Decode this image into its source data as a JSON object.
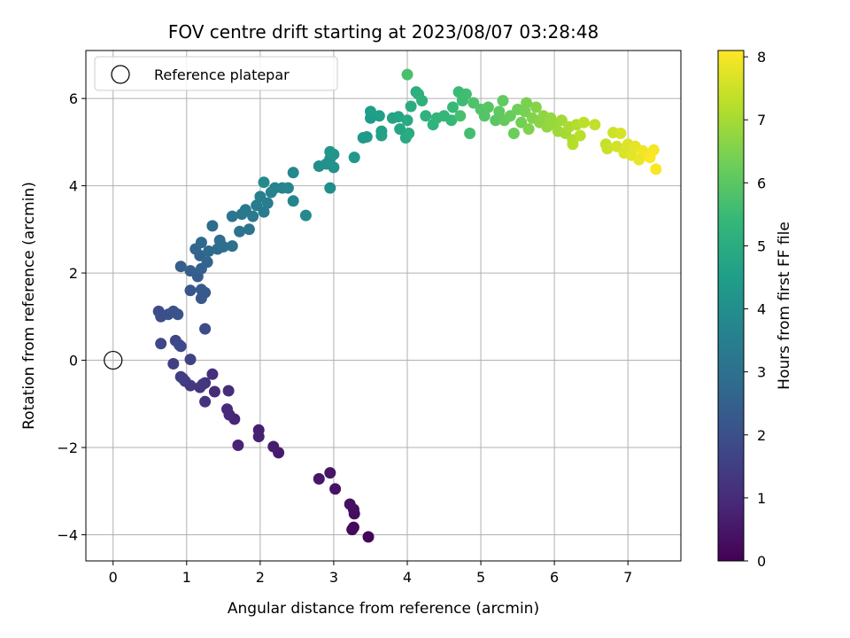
{
  "chart_data": {
    "type": "scatter",
    "title": "FOV centre drift starting at 2023/08/07 03:28:48",
    "xlabel": "Angular distance from reference (arcmin)",
    "ylabel": "Rotation from reference (arcmin)",
    "xlim": [
      -0.37,
      7.72
    ],
    "ylim": [
      -4.6,
      7.1
    ],
    "xticks": [
      0,
      1,
      2,
      3,
      4,
      5,
      6,
      7
    ],
    "yticks": [
      -4,
      -2,
      0,
      2,
      4,
      6
    ],
    "grid": true,
    "legend": {
      "placement": "top-left",
      "entries": [
        "Reference platepar"
      ]
    },
    "reference_point": {
      "x": 0,
      "y": 0,
      "label": "Reference platepar"
    },
    "colorbar": {
      "label": "Hours from first FF file",
      "range": [
        0,
        8.1
      ],
      "ticks": [
        0,
        1,
        2,
        3,
        4,
        5,
        6,
        7,
        8
      ],
      "colormap": "viridis",
      "colors": [
        "#440154",
        "#482878",
        "#3e4989",
        "#31688e",
        "#26828e",
        "#1f9e89",
        "#35b779",
        "#6ece58",
        "#b5de2b",
        "#fde725"
      ]
    },
    "points": [
      [
        3.47,
        -4.05,
        0.1
      ],
      [
        3.27,
        -3.83,
        0.15
      ],
      [
        3.25,
        -3.88,
        0.2
      ],
      [
        3.28,
        -3.52,
        0.25
      ],
      [
        3.27,
        -3.42,
        0.3
      ],
      [
        3.22,
        -3.3,
        0.35
      ],
      [
        3.02,
        -2.95,
        0.4
      ],
      [
        2.95,
        -2.58,
        0.45
      ],
      [
        2.8,
        -2.72,
        0.5
      ],
      [
        2.25,
        -2.12,
        0.6
      ],
      [
        2.18,
        -1.98,
        0.65
      ],
      [
        1.98,
        -1.6,
        0.7
      ],
      [
        1.98,
        -1.75,
        0.75
      ],
      [
        1.7,
        -1.95,
        0.8
      ],
      [
        1.65,
        -1.35,
        0.85
      ],
      [
        1.58,
        -1.25,
        0.9
      ],
      [
        1.55,
        -1.12,
        0.95
      ],
      [
        1.38,
        -0.72,
        1.0
      ],
      [
        1.57,
        -0.7,
        1.05
      ],
      [
        1.35,
        -0.32,
        1.1
      ],
      [
        1.25,
        -0.52,
        1.15
      ],
      [
        1.25,
        -0.95,
        1.2
      ],
      [
        1.18,
        -0.62,
        1.25
      ],
      [
        1.22,
        -0.55,
        1.3
      ],
      [
        1.05,
        -0.58,
        1.35
      ],
      [
        0.98,
        -0.48,
        1.4
      ],
      [
        0.92,
        -0.38,
        1.45
      ],
      [
        0.95,
        -0.42,
        1.5
      ],
      [
        0.82,
        -0.08,
        1.55
      ],
      [
        1.05,
        0.02,
        1.6
      ],
      [
        0.92,
        0.32,
        1.65
      ],
      [
        0.85,
        0.45,
        1.7
      ],
      [
        0.65,
        0.38,
        1.75
      ],
      [
        0.9,
        0.35,
        1.8
      ],
      [
        1.25,
        0.72,
        1.85
      ],
      [
        0.62,
        1.12,
        1.9
      ],
      [
        0.65,
        1.0,
        1.95
      ],
      [
        0.75,
        1.05,
        2.0
      ],
      [
        0.82,
        1.12,
        2.05
      ],
      [
        0.88,
        1.05,
        2.1
      ],
      [
        1.05,
        1.6,
        2.15
      ],
      [
        1.2,
        1.42,
        2.2
      ],
      [
        1.25,
        1.55,
        2.25
      ],
      [
        1.2,
        1.62,
        2.3
      ],
      [
        1.15,
        1.92,
        2.35
      ],
      [
        0.92,
        2.15,
        2.4
      ],
      [
        1.05,
        2.05,
        2.45
      ],
      [
        1.2,
        2.1,
        2.5
      ],
      [
        1.18,
        2.4,
        2.55
      ],
      [
        1.28,
        2.25,
        2.6
      ],
      [
        1.12,
        2.55,
        2.65
      ],
      [
        1.2,
        2.7,
        2.7
      ],
      [
        1.3,
        2.5,
        2.75
      ],
      [
        1.42,
        2.55,
        2.8
      ],
      [
        1.35,
        3.08,
        2.85
      ],
      [
        1.45,
        2.75,
        2.9
      ],
      [
        1.5,
        2.6,
        2.95
      ],
      [
        1.62,
        2.62,
        3.0
      ],
      [
        1.72,
        2.95,
        3.05
      ],
      [
        1.85,
        3.0,
        3.1
      ],
      [
        1.62,
        3.3,
        3.15
      ],
      [
        1.75,
        3.35,
        3.2
      ],
      [
        1.8,
        3.45,
        3.25
      ],
      [
        1.9,
        3.3,
        3.3
      ],
      [
        1.95,
        3.55,
        3.35
      ],
      [
        2.05,
        3.4,
        3.4
      ],
      [
        2.1,
        3.6,
        3.45
      ],
      [
        2.0,
        3.75,
        3.5
      ],
      [
        2.15,
        3.85,
        3.55
      ],
      [
        2.2,
        3.95,
        3.6
      ],
      [
        2.3,
        3.95,
        3.65
      ],
      [
        2.45,
        3.65,
        3.7
      ],
      [
        2.38,
        3.95,
        3.75
      ],
      [
        2.45,
        4.3,
        3.8
      ],
      [
        2.62,
        3.32,
        3.85
      ],
      [
        2.05,
        4.08,
        3.9
      ],
      [
        2.95,
        3.95,
        3.95
      ],
      [
        2.8,
        4.45,
        4.0
      ],
      [
        2.9,
        4.5,
        4.05
      ],
      [
        3.0,
        4.42,
        4.1
      ],
      [
        2.95,
        4.62,
        4.15
      ],
      [
        3.0,
        4.72,
        4.2
      ],
      [
        2.95,
        4.78,
        4.25
      ],
      [
        3.28,
        4.65,
        4.3
      ],
      [
        3.4,
        5.1,
        4.35
      ],
      [
        3.45,
        5.12,
        4.4
      ],
      [
        3.5,
        5.55,
        4.45
      ],
      [
        3.5,
        5.7,
        4.5
      ],
      [
        3.62,
        5.6,
        4.55
      ],
      [
        3.65,
        5.25,
        4.6
      ],
      [
        3.65,
        5.15,
        4.65
      ],
      [
        3.8,
        5.55,
        4.7
      ],
      [
        3.88,
        5.58,
        4.75
      ],
      [
        3.9,
        5.3,
        4.8
      ],
      [
        4.0,
        5.5,
        4.85
      ],
      [
        3.98,
        5.1,
        4.9
      ],
      [
        4.02,
        5.2,
        4.95
      ],
      [
        4.05,
        5.82,
        5.0
      ],
      [
        4.12,
        6.15,
        5.05
      ],
      [
        4.15,
        6.1,
        5.1
      ],
      [
        4.2,
        5.95,
        5.15
      ],
      [
        4.25,
        5.6,
        5.2
      ],
      [
        4.35,
        5.4,
        5.25
      ],
      [
        4.4,
        5.55,
        5.3
      ],
      [
        4.5,
        5.6,
        5.35
      ],
      [
        4.6,
        5.5,
        5.4
      ],
      [
        4.62,
        5.8,
        5.45
      ],
      [
        4.7,
        6.15,
        5.5
      ],
      [
        4.75,
        5.95,
        5.55
      ],
      [
        4.8,
        6.1,
        5.6
      ],
      [
        4.85,
        5.2,
        5.65
      ],
      [
        4.72,
        5.6,
        5.7
      ],
      [
        4.0,
        6.55,
        5.75
      ],
      [
        4.9,
        5.9,
        5.8
      ],
      [
        5.0,
        5.75,
        5.85
      ],
      [
        5.05,
        5.6,
        5.9
      ],
      [
        5.1,
        5.8,
        5.95
      ],
      [
        5.2,
        5.5,
        6.0
      ],
      [
        5.25,
        5.7,
        6.05
      ],
      [
        5.3,
        5.95,
        6.1
      ],
      [
        5.32,
        5.5,
        6.15
      ],
      [
        5.4,
        5.6,
        6.2
      ],
      [
        5.45,
        5.2,
        6.25
      ],
      [
        5.5,
        5.75,
        6.3
      ],
      [
        5.55,
        5.45,
        6.35
      ],
      [
        5.6,
        5.7,
        6.4
      ],
      [
        5.62,
        5.9,
        6.45
      ],
      [
        5.65,
        5.3,
        6.5
      ],
      [
        5.7,
        5.55,
        6.55
      ],
      [
        5.75,
        5.8,
        6.6
      ],
      [
        5.8,
        5.45,
        6.65
      ],
      [
        5.85,
        5.6,
        6.7
      ],
      [
        5.9,
        5.35,
        6.75
      ],
      [
        5.95,
        5.55,
        6.8
      ],
      [
        6.0,
        5.4,
        6.85
      ],
      [
        6.05,
        5.25,
        6.9
      ],
      [
        6.1,
        5.5,
        6.95
      ],
      [
        6.15,
        5.2,
        7.0
      ],
      [
        6.2,
        5.35,
        7.05
      ],
      [
        6.25,
        5.05,
        7.1
      ],
      [
        6.3,
        5.4,
        7.15
      ],
      [
        6.25,
        4.95,
        7.2
      ],
      [
        6.35,
        5.15,
        7.25
      ],
      [
        6.4,
        5.45,
        7.3
      ],
      [
        6.55,
        5.4,
        7.35
      ],
      [
        6.7,
        4.95,
        7.4
      ],
      [
        6.72,
        4.85,
        7.45
      ],
      [
        6.8,
        5.22,
        7.5
      ],
      [
        6.85,
        4.9,
        7.55
      ],
      [
        6.9,
        5.2,
        7.6
      ],
      [
        6.95,
        4.75,
        7.65
      ],
      [
        7.0,
        4.95,
        7.7
      ],
      [
        7.05,
        4.7,
        7.75
      ],
      [
        7.1,
        4.9,
        7.8
      ],
      [
        7.15,
        4.6,
        7.85
      ],
      [
        7.2,
        4.8,
        7.9
      ],
      [
        7.25,
        4.7,
        7.95
      ],
      [
        7.35,
        4.82,
        8.0
      ],
      [
        7.38,
        4.38,
        8.05
      ],
      [
        7.3,
        4.65,
        8.08
      ]
    ]
  }
}
